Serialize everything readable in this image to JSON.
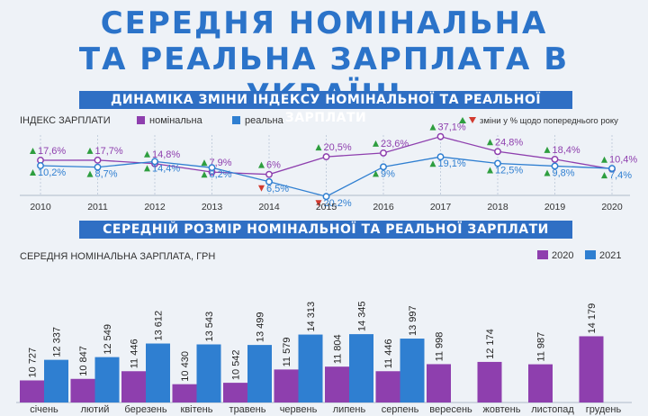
{
  "title": {
    "line1": "СЕРЕДНЯ НОМІНАЛЬНА",
    "line2": "ТА РЕАЛЬНА ЗАРПЛАТА В УКРАЇНІ"
  },
  "section1": {
    "band": "ДИНАМІКА ЗМІНИ ІНДЕКСУ НОМІНАЛЬНОЇ ТА РЕАЛЬНОЇ ЗАРПЛАТИ",
    "label": "ІНДЕКС ЗАРПЛАТИ",
    "legend_nominal": "номінальна",
    "legend_real": "реальна",
    "note": "зміни у % щодо попереднього року"
  },
  "section2": {
    "band": "СЕРЕДНІЙ РОЗМІР НОМІНАЛЬНОЇ ТА РЕАЛЬНОЇ ЗАРПЛАТИ",
    "label": "СЕРЕДНЯ НОМІНАЛЬНА ЗАРПЛАТА, ГРН"
  },
  "colors": {
    "nominal": "#8e3fae",
    "real": "#2f7fd1",
    "band": "#2f6fc4",
    "title": "#2b73c9",
    "up": "#2e9e3f",
    "down": "#d23a2f"
  },
  "chart_data": [
    {
      "type": "line",
      "x": [
        "2010",
        "2011",
        "2012",
        "2013",
        "2014",
        "2015",
        "2016",
        "2017",
        "2018",
        "2019",
        "2020"
      ],
      "series": [
        {
          "name": "номінальна",
          "values": [
            17.6,
            17.7,
            14.8,
            7.9,
            6,
            20.5,
            23.6,
            37.1,
            24.8,
            18.4,
            10.4
          ],
          "labels": [
            "17,6%",
            "17,7%",
            "14,8%",
            "7,9%",
            "6%",
            "20,5%",
            "23,6%",
            "37,1%",
            "24,8%",
            "18,4%",
            "10,4%"
          ],
          "direction": [
            "up",
            "up",
            "up",
            "up",
            "up",
            "up",
            "up",
            "up",
            "up",
            "up",
            "up"
          ]
        },
        {
          "name": "реальна",
          "values": [
            10.2,
            8.7,
            14.4,
            8.2,
            -6.5,
            -20.2,
            9,
            19.1,
            12.5,
            9.8,
            7.4
          ],
          "labels": [
            "10,2%",
            "8,7%",
            "14,4%",
            "8,2%",
            "6,5%",
            "20,2%",
            "9%",
            "19,1%",
            "12,5%",
            "9,8%",
            "7,4%"
          ],
          "direction": [
            "up",
            "up",
            "up",
            "up",
            "down",
            "down",
            "up",
            "up",
            "up",
            "up",
            "up"
          ]
        }
      ]
    },
    {
      "type": "bar",
      "categories": [
        "січень",
        "лютий",
        "березень",
        "квітень",
        "травень",
        "червень",
        "липень",
        "серпень",
        "вересень",
        "жовтень",
        "листопад",
        "грудень"
      ],
      "series": [
        {
          "name": "2020",
          "values": [
            10727,
            10847,
            11446,
            10430,
            10542,
            11579,
            11804,
            11446,
            11998,
            12174,
            11987,
            14179
          ],
          "labels": [
            "10 727",
            "10 847",
            "11 446",
            "10 430",
            "10 542",
            "11 579",
            "11 804",
            "11 446",
            "11 998",
            "12 174",
            "11 987",
            "14 179"
          ]
        },
        {
          "name": "2021",
          "values": [
            12337,
            12549,
            13612,
            13543,
            13499,
            14313,
            14345,
            13997,
            null,
            null,
            null,
            null
          ],
          "labels": [
            "12 337",
            "12 549",
            "13 612",
            "13 543",
            "13 499",
            "14 313",
            "14 345",
            "13 997",
            "",
            "",
            "",
            ""
          ]
        }
      ]
    }
  ]
}
